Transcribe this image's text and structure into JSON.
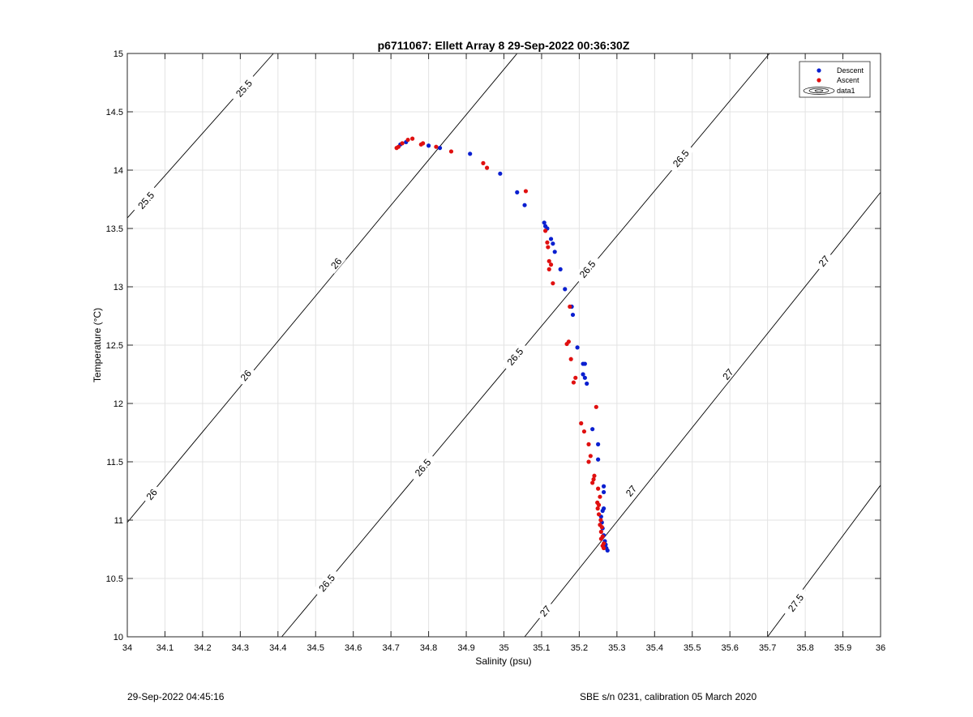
{
  "chart_data": {
    "type": "scatter",
    "title": "p6711067: Ellett Array 8 29-Sep-2022 00:36:30Z",
    "xlabel": "Salinity (psu)",
    "ylabel": "Temperature (°C)",
    "xlim": [
      34,
      36
    ],
    "ylim": [
      10,
      15
    ],
    "xticks": [
      34,
      34.1,
      34.2,
      34.3,
      34.4,
      34.5,
      34.6,
      34.7,
      34.8,
      34.9,
      35,
      35.1,
      35.2,
      35.3,
      35.4,
      35.5,
      35.6,
      35.7,
      35.8,
      35.9,
      36
    ],
    "xtick_labels": [
      "34",
      "34.1",
      "34.2",
      "34.3",
      "34.4",
      "34.5",
      "34.6",
      "34.7",
      "34.8",
      "34.9",
      "35",
      "35.1",
      "35.2",
      "35.3",
      "35.4",
      "35.5",
      "35.6",
      "35.7",
      "35.8",
      "35.9",
      "36"
    ],
    "yticks": [
      10,
      10.5,
      11,
      11.5,
      12,
      12.5,
      13,
      13.5,
      14,
      14.5,
      15
    ],
    "ytick_labels": [
      "10",
      "10.5",
      "11",
      "11.5",
      "12",
      "12.5",
      "13",
      "13.5",
      "14",
      "14.5",
      "15"
    ],
    "grid": true,
    "legend_position": "top-right",
    "legend": [
      "Descent",
      "Ascent",
      "data1"
    ],
    "colors": {
      "descent": "#0a1fd0",
      "ascent": "#e01010",
      "contour": "#000000",
      "grid": "#e3e3e3"
    },
    "series": [
      {
        "name": "Descent",
        "points": [
          [
            34.725,
            14.22
          ],
          [
            34.74,
            14.24
          ],
          [
            34.8,
            14.21
          ],
          [
            34.83,
            14.19
          ],
          [
            34.91,
            14.14
          ],
          [
            34.99,
            13.97
          ],
          [
            35.035,
            13.81
          ],
          [
            35.055,
            13.7
          ],
          [
            35.107,
            13.55
          ],
          [
            35.11,
            13.52
          ],
          [
            35.115,
            13.5
          ],
          [
            35.125,
            13.41
          ],
          [
            35.13,
            13.37
          ],
          [
            35.135,
            13.3
          ],
          [
            35.15,
            13.15
          ],
          [
            35.162,
            12.98
          ],
          [
            35.18,
            12.83
          ],
          [
            35.183,
            12.76
          ],
          [
            35.195,
            12.48
          ],
          [
            35.21,
            12.34
          ],
          [
            35.215,
            12.34
          ],
          [
            35.21,
            12.25
          ],
          [
            35.215,
            12.22
          ],
          [
            35.22,
            12.17
          ],
          [
            35.235,
            11.78
          ],
          [
            35.25,
            11.65
          ],
          [
            35.25,
            11.52
          ],
          [
            35.265,
            11.29
          ],
          [
            35.265,
            11.24
          ],
          [
            35.265,
            11.1
          ],
          [
            35.262,
            11.08
          ],
          [
            35.258,
            11.03
          ],
          [
            35.26,
            10.98
          ],
          [
            35.262,
            10.93
          ],
          [
            35.265,
            10.87
          ],
          [
            35.268,
            10.82
          ],
          [
            35.27,
            10.79
          ],
          [
            35.272,
            10.76
          ],
          [
            35.275,
            10.74
          ]
        ]
      },
      {
        "name": "Ascent",
        "points": [
          [
            34.715,
            14.19
          ],
          [
            34.72,
            14.2
          ],
          [
            34.73,
            14.23
          ],
          [
            34.745,
            14.26
          ],
          [
            34.757,
            14.27
          ],
          [
            34.78,
            14.22
          ],
          [
            34.785,
            14.23
          ],
          [
            34.82,
            14.2
          ],
          [
            34.86,
            14.16
          ],
          [
            34.945,
            14.06
          ],
          [
            34.955,
            14.02
          ],
          [
            35.058,
            13.82
          ],
          [
            35.11,
            13.48
          ],
          [
            35.115,
            13.38
          ],
          [
            35.117,
            13.34
          ],
          [
            35.12,
            13.22
          ],
          [
            35.125,
            13.19
          ],
          [
            35.12,
            13.15
          ],
          [
            35.13,
            13.03
          ],
          [
            35.175,
            12.83
          ],
          [
            35.167,
            12.51
          ],
          [
            35.172,
            12.53
          ],
          [
            35.178,
            12.38
          ],
          [
            35.185,
            12.18
          ],
          [
            35.19,
            12.22
          ],
          [
            35.245,
            11.97
          ],
          [
            35.205,
            11.83
          ],
          [
            35.213,
            11.76
          ],
          [
            35.225,
            11.65
          ],
          [
            35.23,
            11.55
          ],
          [
            35.225,
            11.5
          ],
          [
            35.24,
            11.38
          ],
          [
            35.238,
            11.35
          ],
          [
            35.235,
            11.32
          ],
          [
            35.25,
            11.27
          ],
          [
            35.255,
            11.2
          ],
          [
            35.248,
            11.15
          ],
          [
            35.252,
            11.13
          ],
          [
            35.249,
            11.1
          ],
          [
            35.252,
            11.05
          ],
          [
            35.257,
            11
          ],
          [
            35.255,
            10.96
          ],
          [
            35.26,
            10.94
          ],
          [
            35.258,
            10.9
          ],
          [
            35.262,
            10.86
          ],
          [
            35.258,
            10.84
          ],
          [
            35.265,
            10.8
          ],
          [
            35.262,
            10.78
          ],
          [
            35.265,
            10.76
          ]
        ]
      }
    ],
    "contour_lines": [
      {
        "label": "25.5",
        "from": [
          34.0,
          13.59
        ],
        "to": [
          34.388,
          15.0
        ],
        "labels": [
          {
            "text": "25.5",
            "at": [
              34.05,
              13.74
            ]
          },
          {
            "text": "25.5",
            "at": [
              34.31,
              14.7
            ]
          }
        ]
      },
      {
        "label": "26",
        "from": [
          34.0,
          10.98
        ],
        "to": [
          35.035,
          15.0
        ],
        "labels": [
          {
            "text": "26",
            "at": [
              34.065,
              11.22
            ]
          },
          {
            "text": "26",
            "at": [
              34.315,
              12.24
            ]
          },
          {
            "text": "26",
            "at": [
              34.555,
              13.2
            ]
          }
        ]
      },
      {
        "label": "26.5",
        "from": [
          34.41,
          10.0
        ],
        "to": [
          35.705,
          15.0
        ],
        "labels": [
          {
            "text": "26.5",
            "at": [
              34.53,
              10.46
            ]
          },
          {
            "text": "26.5",
            "at": [
              34.785,
              11.45
            ]
          },
          {
            "text": "26.5",
            "at": [
              35.03,
              12.4
            ]
          },
          {
            "text": "26.5",
            "at": [
              35.222,
              13.15
            ]
          },
          {
            "text": "26.5",
            "at": [
              35.47,
              14.1
            ]
          }
        ]
      },
      {
        "label": "27",
        "from": [
          35.055,
          10.0
        ],
        "to": [
          36.0,
          13.81
        ],
        "labels": [
          {
            "text": "27",
            "at": [
              35.11,
              10.22
            ]
          },
          {
            "text": "27",
            "at": [
              35.338,
              11.25
            ]
          },
          {
            "text": "27",
            "at": [
              35.595,
              12.25
            ]
          },
          {
            "text": "27",
            "at": [
              35.85,
              13.22
            ]
          }
        ]
      },
      {
        "label": "27.5",
        "from": [
          35.7,
          10.0
        ],
        "to": [
          36.0,
          11.3
        ],
        "labels": [
          {
            "text": "27.5",
            "at": [
              35.775,
              10.29
            ]
          }
        ]
      }
    ]
  },
  "footer": {
    "left": "29-Sep-2022 04:45:16",
    "right": "SBE s/n 0231, calibration 05 March 2020"
  }
}
